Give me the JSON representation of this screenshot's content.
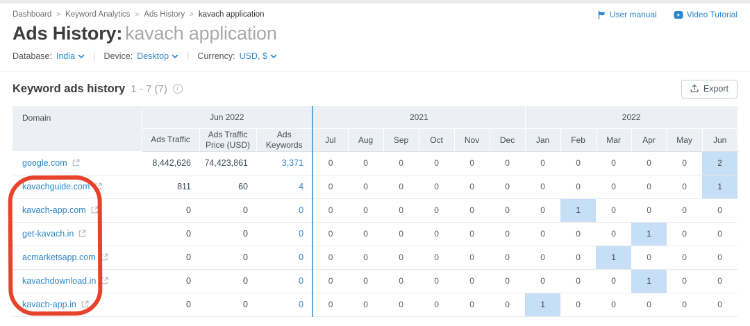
{
  "page": {
    "breadcrumb": {
      "items": [
        "Dashboard",
        "Keyword Analytics",
        "Ads History",
        "kavach application"
      ],
      "separator": ">"
    },
    "header_links": {
      "user_manual": "User manual",
      "video_tutorial": "Video Tutorial"
    },
    "title": {
      "prefix": "Ads History:",
      "keyword": "kavach application"
    },
    "filters": [
      {
        "label": "Database:",
        "value": "India"
      },
      {
        "label": "Device:",
        "value": "Desktop"
      },
      {
        "label": "Currency:",
        "value": "USD, $"
      }
    ],
    "section": {
      "title": "Keyword ads history",
      "range": "1 - 7 (7)",
      "info": "i",
      "export_label": "Export"
    }
  },
  "table": {
    "domain_header": "Domain",
    "groups": [
      {
        "label": "Jun 2022",
        "span": 3
      },
      {
        "label": "2021",
        "span": 6
      },
      {
        "label": "2022",
        "span": 6
      }
    ],
    "metric_headers": [
      "Ads Traffic",
      "Ads Traffic Price (USD)",
      "Ads Keywords"
    ],
    "month_headers": [
      "Jul",
      "Aug",
      "Sep",
      "Oct",
      "Nov",
      "Dec",
      "Jan",
      "Feb",
      "Mar",
      "Apr",
      "May",
      "Jun"
    ],
    "rows": [
      {
        "domain": "google.com",
        "ads_traffic": "8,442,626",
        "ads_traffic_price": "74,423,861",
        "ads_keywords": "3,371",
        "months": [
          "0",
          "0",
          "0",
          "0",
          "0",
          "0",
          "0",
          "0",
          "0",
          "0",
          "0",
          "2"
        ],
        "highlight_month": 11
      },
      {
        "domain": "kavachguide.com",
        "ads_traffic": "811",
        "ads_traffic_price": "60",
        "ads_keywords": "4",
        "months": [
          "0",
          "0",
          "0",
          "0",
          "0",
          "0",
          "0",
          "0",
          "0",
          "0",
          "0",
          "1"
        ],
        "highlight_month": 11
      },
      {
        "domain": "kavach-app.com",
        "ads_traffic": "0",
        "ads_traffic_price": "0",
        "ads_keywords": "0",
        "months": [
          "0",
          "0",
          "0",
          "0",
          "0",
          "0",
          "0",
          "1",
          "0",
          "0",
          "0",
          "0"
        ],
        "highlight_month": 7
      },
      {
        "domain": "get-kavach.in",
        "ads_traffic": "0",
        "ads_traffic_price": "0",
        "ads_keywords": "0",
        "months": [
          "0",
          "0",
          "0",
          "0",
          "0",
          "0",
          "0",
          "0",
          "0",
          "1",
          "0",
          "0"
        ],
        "highlight_month": 9
      },
      {
        "domain": "acmarketsapp.com",
        "ads_traffic": "0",
        "ads_traffic_price": "0",
        "ads_keywords": "0",
        "months": [
          "0",
          "0",
          "0",
          "0",
          "0",
          "0",
          "0",
          "0",
          "1",
          "0",
          "0",
          "0"
        ],
        "highlight_month": 8
      },
      {
        "domain": "kavachdownload.in",
        "ads_traffic": "0",
        "ads_traffic_price": "0",
        "ads_keywords": "0",
        "months": [
          "0",
          "0",
          "0",
          "0",
          "0",
          "0",
          "0",
          "0",
          "0",
          "1",
          "0",
          "0"
        ],
        "highlight_month": 9
      },
      {
        "domain": "kavach-app.in",
        "ads_traffic": "0",
        "ads_traffic_price": "0",
        "ads_keywords": "0",
        "months": [
          "0",
          "0",
          "0",
          "0",
          "0",
          "0",
          "1",
          "0",
          "0",
          "0",
          "0",
          "0"
        ],
        "highlight_month": 6
      }
    ]
  },
  "icons": {
    "user_manual": "flag-icon",
    "video_tutorial": "play-icon",
    "filter_caret": "chevron-down-icon",
    "info": "info-icon",
    "export": "upload-icon",
    "domain_external": "external-link-icon"
  },
  "colors": {
    "accent_blue": "#2e87c8",
    "highlight_cell": "#c6def6",
    "column_divider_blue": "#58a8e2",
    "annotation_red": "#e7432c",
    "header_bg": "#ecf0f4"
  },
  "annotation": {
    "type": "red-rounded-rectangle",
    "target": "domain-column-rows-2-7"
  }
}
